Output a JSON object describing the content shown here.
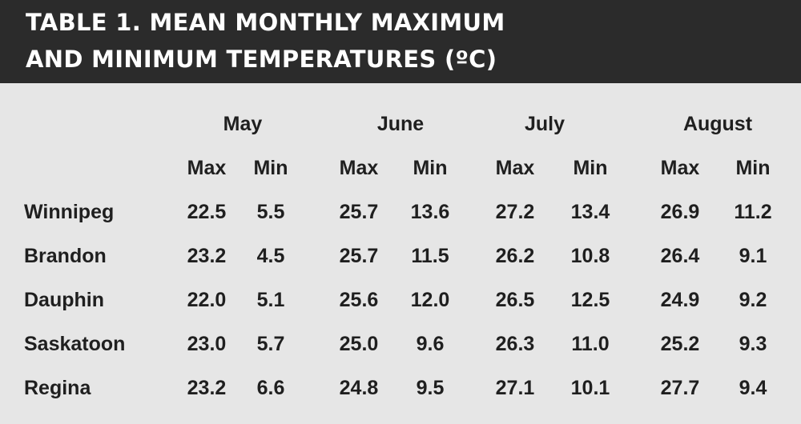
{
  "title": {
    "line1": "TABLE 1. MEAN MONTHLY MAXIMUM",
    "line2": "AND MINIMUM TEMPERATURES (ºC)"
  },
  "months": [
    "May",
    "June",
    "July",
    "August"
  ],
  "sub_headers": [
    "Max",
    "Min"
  ],
  "rows": [
    {
      "city": "Winnipeg",
      "values": [
        "22.5",
        "5.5",
        "25.7",
        "13.6",
        "27.2",
        "13.4",
        "26.9",
        "11.2"
      ]
    },
    {
      "city": "Brandon",
      "values": [
        "23.2",
        "4.5",
        "25.7",
        "11.5",
        "26.2",
        "10.8",
        "26.4",
        "9.1"
      ]
    },
    {
      "city": "Dauphin",
      "values": [
        "22.0",
        "5.1",
        "25.6",
        "12.0",
        "26.5",
        "12.5",
        "24.9",
        "9.2"
      ]
    },
    {
      "city": "Saskatoon",
      "values": [
        "23.0",
        "5.7",
        "25.0",
        "9.6",
        "26.3",
        "11.0",
        "25.2",
        "9.3"
      ]
    },
    {
      "city": "Regina",
      "values": [
        "23.2",
        "6.6",
        "24.8",
        "9.5",
        "27.1",
        "10.1",
        "27.7",
        "9.4"
      ]
    }
  ],
  "colors": {
    "header_background": "#2b2b2b",
    "header_text": "#ffffff",
    "body_background": "#e6e6e6",
    "body_text": "#1f1f1f"
  }
}
